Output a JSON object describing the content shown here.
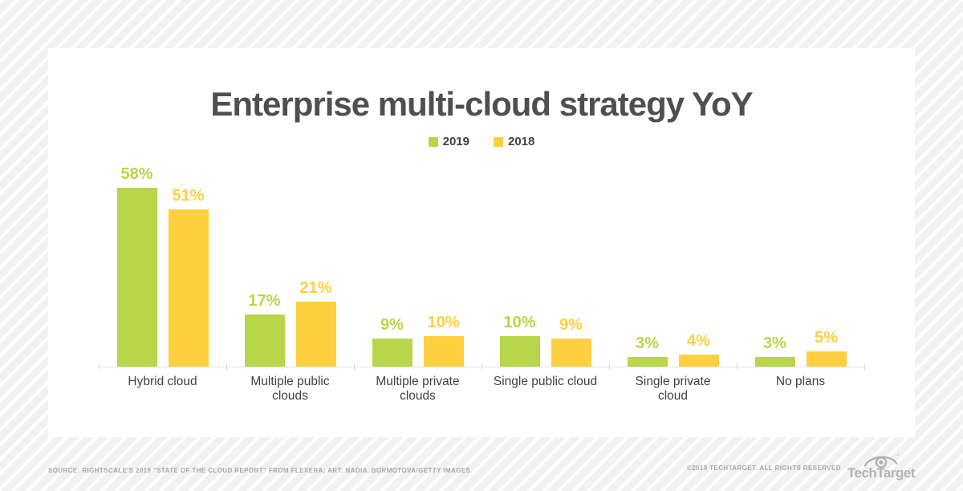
{
  "chart_data": {
    "type": "bar",
    "title": "Enterprise multi-cloud strategy YoY",
    "categories": [
      "Hybrid cloud",
      "Multiple public clouds",
      "Multiple private clouds",
      "Single public cloud",
      "Single private cloud",
      "No plans"
    ],
    "series": [
      {
        "name": "2019",
        "color": "#b8d64a",
        "values": [
          58,
          17,
          9,
          10,
          3,
          3
        ]
      },
      {
        "name": "2018",
        "color": "#fed03f",
        "values": [
          51,
          21,
          10,
          9,
          4,
          5
        ]
      }
    ],
    "value_suffix": "%",
    "ylim": [
      0,
      60
    ],
    "grid": false,
    "legend_position": "top-center",
    "data_labels": "outside-end"
  },
  "footer": {
    "source": "SOURCE: RIGHTSCALE'S 2019 \"STATE OF THE CLOUD REPORT\" FROM FLEXERA; ART: NADIA_BORMOTOVA/GETTY IMAGES",
    "copyright": "©2019 TECHTARGET. ALL RIGHTS RESERVED",
    "logo_text": "TechTarget",
    "logo_trademark": "™"
  },
  "colors": {
    "title_text": "#4f4f51",
    "category_text": "#414144",
    "axis_line": "#e3e3e4",
    "tick": "#d7d7d9",
    "footer_text": "#a7a7ab",
    "logo": "#b2b2b5",
    "card_bg": "#ffffff",
    "page_stripe_gray": "#f1f1f2",
    "page_stripe_white": "#ffffff"
  }
}
